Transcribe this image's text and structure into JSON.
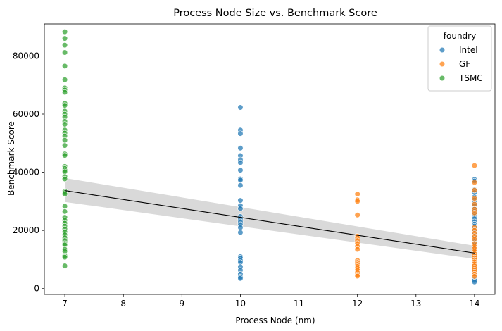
{
  "chart_data": {
    "type": "scatter",
    "title": "Process Node Size vs. Benchmark Score",
    "xlabel": "Process Node (nm)",
    "ylabel": "Benchmark Score",
    "xlim": [
      6.65,
      14.35
    ],
    "ylim": [
      -2000,
      91000
    ],
    "xticks": [
      7,
      8,
      9,
      10,
      11,
      12,
      13,
      14
    ],
    "yticks": [
      0,
      20000,
      40000,
      60000,
      80000
    ],
    "ytick_labels": [
      "0",
      "20000",
      "40000",
      "60000",
      "80000"
    ],
    "grid": false,
    "legend": {
      "title": "foundry",
      "placement": "top-right"
    },
    "series": [
      {
        "name": "Intel",
        "color": "#1f77b4",
        "points": [
          [
            10,
            62300
          ],
          [
            10,
            54500
          ],
          [
            10,
            53300
          ],
          [
            10,
            48300
          ],
          [
            10,
            45700
          ],
          [
            10,
            44300
          ],
          [
            10,
            43300
          ],
          [
            10,
            40700
          ],
          [
            10,
            37700
          ],
          [
            10,
            37300
          ],
          [
            10,
            35500
          ],
          [
            10,
            30300
          ],
          [
            10,
            28500
          ],
          [
            10,
            27500
          ],
          [
            10,
            24800
          ],
          [
            10,
            24000
          ],
          [
            10,
            23000
          ],
          [
            10,
            22000
          ],
          [
            10,
            21000
          ],
          [
            10,
            19300
          ],
          [
            10,
            11000
          ],
          [
            10,
            10500
          ],
          [
            10,
            9700
          ],
          [
            10,
            9000
          ],
          [
            10,
            7500
          ],
          [
            10,
            6300
          ],
          [
            10,
            5000
          ],
          [
            10,
            4000
          ],
          [
            10,
            3500
          ],
          [
            14,
            37500
          ],
          [
            14,
            37000
          ],
          [
            14,
            34000
          ],
          [
            14,
            33000
          ],
          [
            14,
            31500
          ],
          [
            14,
            30500
          ],
          [
            14,
            29500
          ],
          [
            14,
            28500
          ],
          [
            14,
            27500
          ],
          [
            14,
            26500
          ],
          [
            14,
            25500
          ],
          [
            14,
            24800
          ],
          [
            14,
            24000
          ],
          [
            14,
            23000
          ],
          [
            14,
            22200
          ],
          [
            14,
            21500
          ],
          [
            14,
            20500
          ],
          [
            14,
            19500
          ],
          [
            14,
            18500
          ],
          [
            14,
            17500
          ],
          [
            14,
            16800
          ],
          [
            14,
            16000
          ],
          [
            14,
            15000
          ],
          [
            14,
            14000
          ],
          [
            14,
            13200
          ],
          [
            14,
            12500
          ],
          [
            14,
            11800
          ],
          [
            14,
            11000
          ],
          [
            14,
            10200
          ],
          [
            14,
            9500
          ],
          [
            14,
            8800
          ],
          [
            14,
            8000
          ],
          [
            14,
            7300
          ],
          [
            14,
            6600
          ],
          [
            14,
            6000
          ],
          [
            14,
            5300
          ],
          [
            14,
            4600
          ],
          [
            14,
            4000
          ],
          [
            14,
            3400
          ],
          [
            14,
            2800
          ],
          [
            14,
            2300
          ]
        ]
      },
      {
        "name": "GF",
        "color": "#ff7f0e",
        "points": [
          [
            12,
            32500
          ],
          [
            12,
            30500
          ],
          [
            12,
            30000
          ],
          [
            12,
            25300
          ],
          [
            12,
            18000
          ],
          [
            12,
            17500
          ],
          [
            12,
            16500
          ],
          [
            12,
            15500
          ],
          [
            12,
            14500
          ],
          [
            12,
            13500
          ],
          [
            12,
            9700
          ],
          [
            12,
            9000
          ],
          [
            12,
            8300
          ],
          [
            12,
            7600
          ],
          [
            12,
            7000
          ],
          [
            12,
            6300
          ],
          [
            12,
            5500
          ],
          [
            12,
            4800
          ],
          [
            12,
            4300
          ],
          [
            14,
            42300
          ],
          [
            14,
            36500
          ],
          [
            14,
            33800
          ],
          [
            14,
            31000
          ],
          [
            14,
            29000
          ],
          [
            14,
            27300
          ],
          [
            14,
            26000
          ],
          [
            14,
            21000
          ],
          [
            14,
            20000
          ],
          [
            14,
            19000
          ],
          [
            14,
            18000
          ],
          [
            14,
            17000
          ],
          [
            14,
            15500
          ],
          [
            14,
            14500
          ],
          [
            14,
            13700
          ],
          [
            14,
            12800
          ],
          [
            14,
            12000
          ],
          [
            14,
            11300
          ],
          [
            14,
            10600
          ],
          [
            14,
            9900
          ],
          [
            14,
            9200
          ],
          [
            14,
            8500
          ],
          [
            14,
            7800
          ],
          [
            14,
            7100
          ],
          [
            14,
            6400
          ],
          [
            14,
            5700
          ],
          [
            14,
            5000
          ],
          [
            14,
            4200
          ]
        ]
      },
      {
        "name": "TSMC",
        "color": "#2ca02c",
        "points": [
          [
            7,
            88300
          ],
          [
            7,
            86000
          ],
          [
            7,
            83700
          ],
          [
            7,
            81200
          ],
          [
            7,
            76500
          ],
          [
            7,
            71800
          ],
          [
            7,
            69000
          ],
          [
            7,
            68300
          ],
          [
            7,
            67500
          ],
          [
            7,
            63700
          ],
          [
            7,
            63000
          ],
          [
            7,
            61000
          ],
          [
            7,
            60000
          ],
          [
            7,
            59000
          ],
          [
            7,
            57500
          ],
          [
            7,
            56500
          ],
          [
            7,
            54500
          ],
          [
            7,
            53500
          ],
          [
            7,
            52500
          ],
          [
            7,
            51000
          ],
          [
            7,
            49200
          ],
          [
            7,
            46300
          ],
          [
            7,
            45800
          ],
          [
            7,
            42000
          ],
          [
            7,
            41300
          ],
          [
            7,
            40700
          ],
          [
            7,
            40200
          ],
          [
            7,
            38500
          ],
          [
            7,
            37700
          ],
          [
            7,
            33500
          ],
          [
            7,
            33000
          ],
          [
            7,
            32500
          ],
          [
            7,
            28300
          ],
          [
            7,
            26500
          ],
          [
            7,
            24500
          ],
          [
            7,
            23500
          ],
          [
            7,
            22500
          ],
          [
            7,
            21500
          ],
          [
            7,
            20500
          ],
          [
            7,
            19500
          ],
          [
            7,
            18500
          ],
          [
            7,
            17500
          ],
          [
            7,
            16500
          ],
          [
            7,
            15500
          ],
          [
            7,
            15000
          ],
          [
            7,
            13500
          ],
          [
            7,
            12800
          ],
          [
            7,
            11300
          ],
          [
            7,
            10800
          ],
          [
            7,
            7800
          ]
        ]
      }
    ],
    "regression": {
      "x": [
        7,
        14
      ],
      "y": [
        33700,
        12200
      ],
      "ci_lower": [
        29800,
        10200
      ],
      "ci_upper": [
        38000,
        14700
      ],
      "line_color": "#000000",
      "band_color": "#d9d9d9"
    }
  }
}
